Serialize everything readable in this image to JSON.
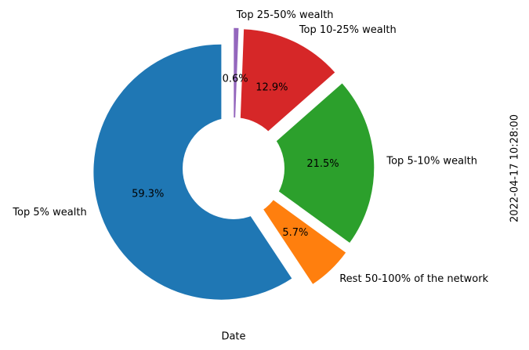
{
  "chart_data": {
    "type": "pie",
    "xlabel": "Date",
    "ylabel": "2022-04-17 10:28:00",
    "categories": [
      "Top 5% wealth",
      "Rest 50-100% of the network",
      "Top 5-10% wealth",
      "Top 10-25% wealth",
      "Top 25-50% wealth"
    ],
    "values": [
      59.3,
      5.7,
      21.5,
      12.9,
      0.6
    ],
    "value_labels": [
      "59.3%",
      "5.7%",
      "21.5%",
      "12.9%",
      "0.6%"
    ],
    "colors": [
      "#1f77b4",
      "#ff7f0e",
      "#2ca02c",
      "#d62728",
      "#9467bd"
    ]
  }
}
